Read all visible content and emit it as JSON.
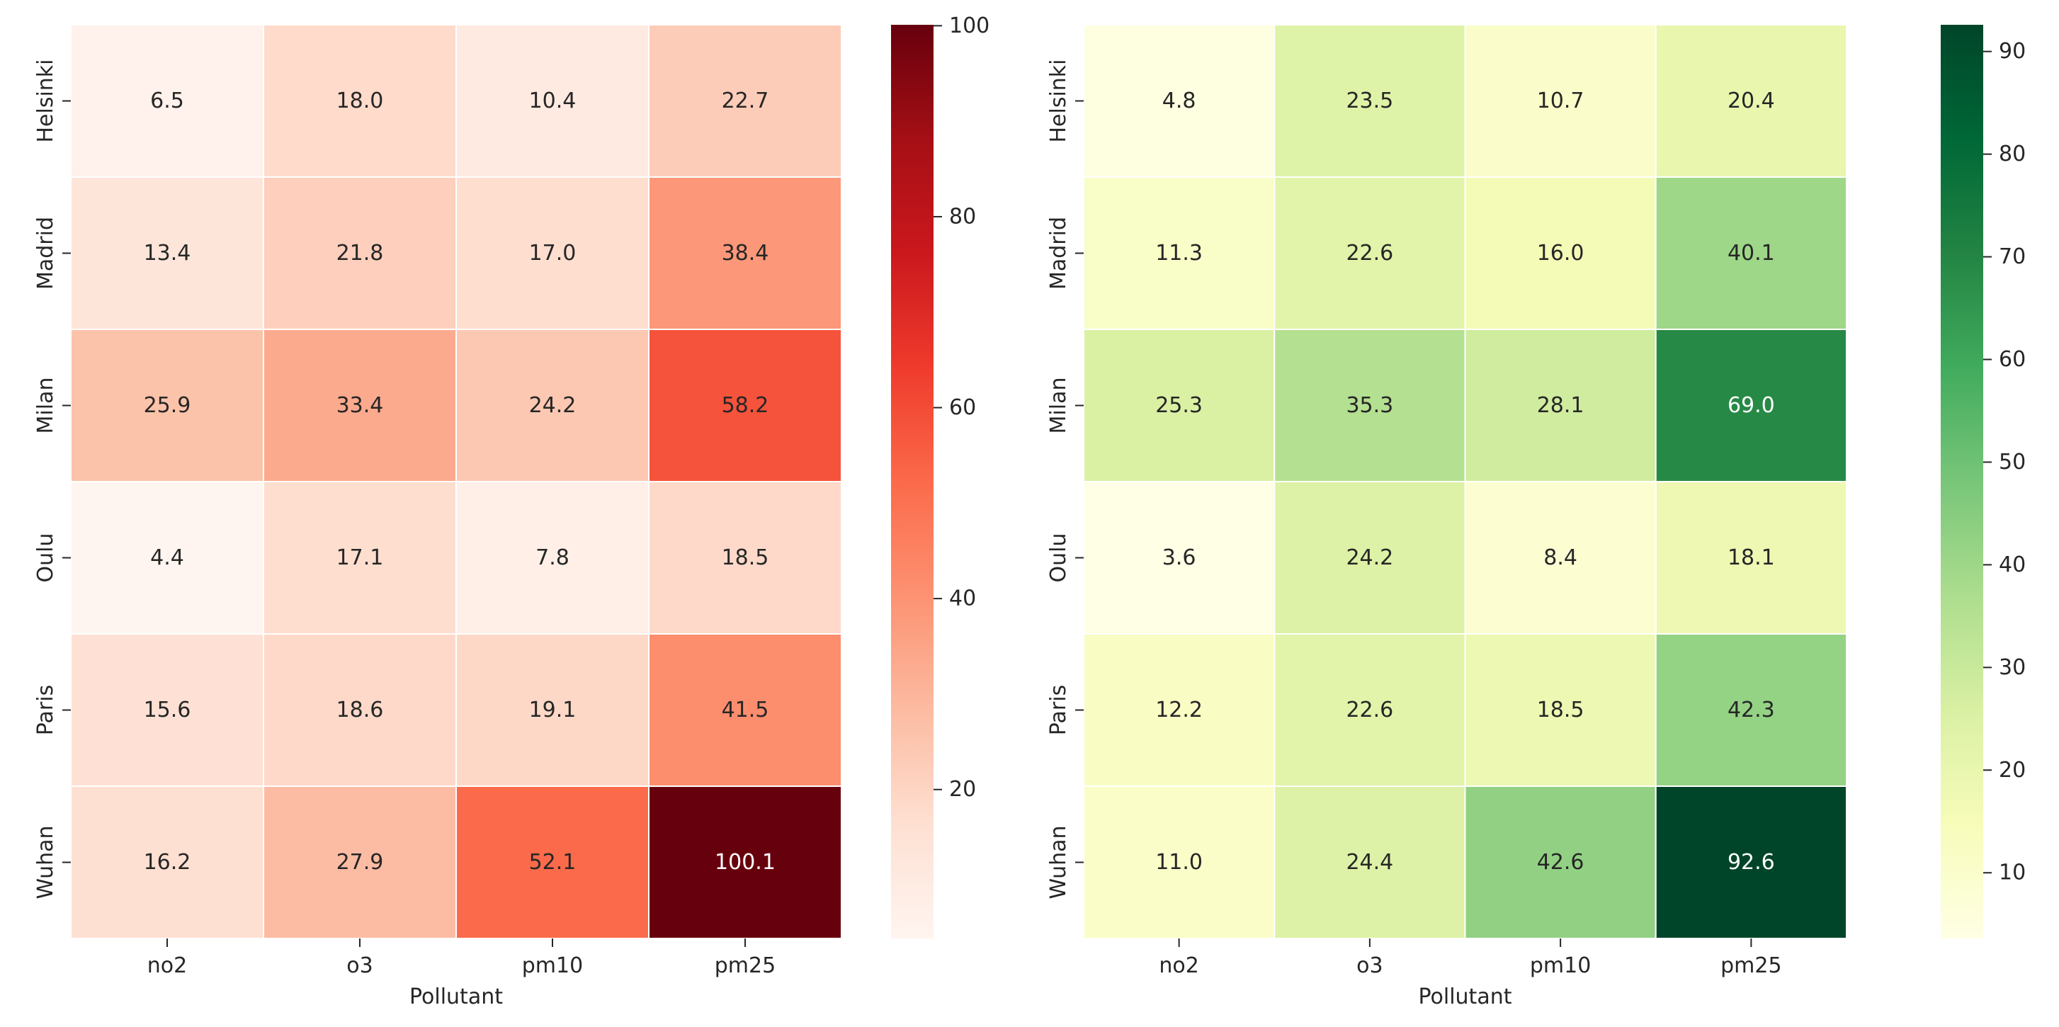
{
  "chart_data": [
    {
      "type": "heatmap",
      "title": "",
      "xlabel": "Pollutant",
      "ylabel": "",
      "x_categories": [
        "no2",
        "o3",
        "pm10",
        "pm25"
      ],
      "y_categories": [
        "Helsinki",
        "Madrid",
        "Milan",
        "Oulu",
        "Paris",
        "Wuhan"
      ],
      "values": [
        [
          6.5,
          18.0,
          10.4,
          22.7
        ],
        [
          13.4,
          21.8,
          17.0,
          38.4
        ],
        [
          25.9,
          33.4,
          24.2,
          58.2
        ],
        [
          4.4,
          17.1,
          7.8,
          18.5
        ],
        [
          15.6,
          18.6,
          19.1,
          41.5
        ],
        [
          16.2,
          27.9,
          52.1,
          100.1
        ]
      ],
      "colormap": "Reds",
      "colormap_stops": [
        "#fff5f0",
        "#fee0d2",
        "#fcbba1",
        "#fc9272",
        "#fb6a4a",
        "#ef3b2c",
        "#cb181d",
        "#a50f15",
        "#67000d"
      ],
      "vmin": 4.4,
      "vmax": 100.1,
      "colorbar_ticks": [
        20,
        40,
        60,
        80,
        100
      ]
    },
    {
      "type": "heatmap",
      "title": "",
      "xlabel": "Pollutant",
      "ylabel": "",
      "x_categories": [
        "no2",
        "o3",
        "pm10",
        "pm25"
      ],
      "y_categories": [
        "Helsinki",
        "Madrid",
        "Milan",
        "Oulu",
        "Paris",
        "Wuhan"
      ],
      "values": [
        [
          4.8,
          23.5,
          10.7,
          20.4
        ],
        [
          11.3,
          22.6,
          16.0,
          40.1
        ],
        [
          25.3,
          35.3,
          28.1,
          69.0
        ],
        [
          3.6,
          24.2,
          8.4,
          18.1
        ],
        [
          12.2,
          22.6,
          18.5,
          42.3
        ],
        [
          11.0,
          24.4,
          42.6,
          92.6
        ]
      ],
      "colormap": "YlGn",
      "colormap_stops": [
        "#ffffe5",
        "#f7fcb9",
        "#d9f0a3",
        "#addd8e",
        "#78c679",
        "#41ab5d",
        "#238443",
        "#006837",
        "#004529"
      ],
      "vmin": 3.6,
      "vmax": 92.6,
      "colorbar_ticks": [
        10,
        20,
        30,
        40,
        50,
        60,
        70,
        80,
        90
      ]
    }
  ]
}
